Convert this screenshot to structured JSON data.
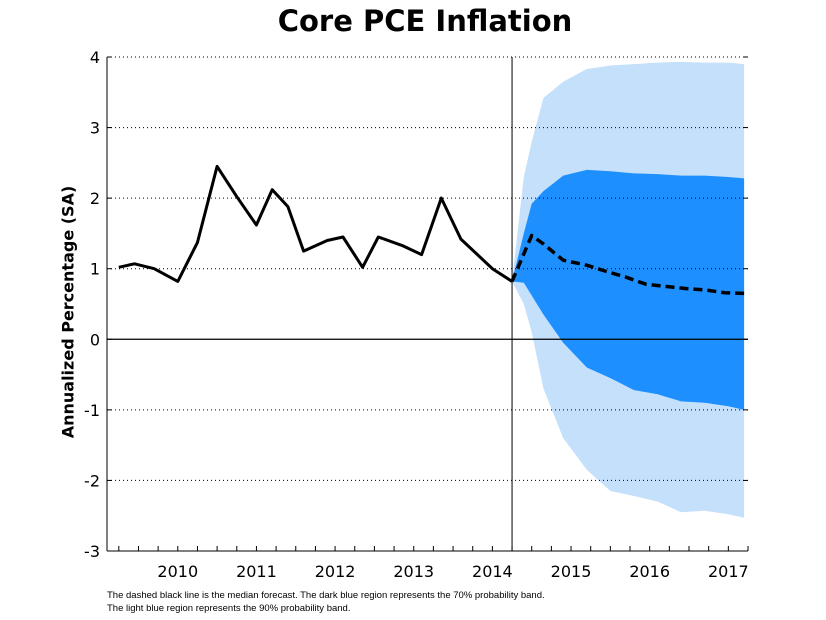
{
  "chart_data": {
    "type": "line",
    "title": "Core PCE Inflation",
    "ylabel": "Annualized Percentage (SA)",
    "xlabel": "",
    "ylim": [
      -3,
      4
    ],
    "xlim": [
      2009.6,
      2017.75
    ],
    "yticks": [
      -3,
      -2,
      -1,
      0,
      1,
      2,
      3,
      4
    ],
    "xtick_labels": [
      "2010",
      "2011",
      "2012",
      "2013",
      "2014",
      "2015",
      "2016",
      "2017"
    ],
    "grid": "horizontal dotted",
    "forecast_start": 2014.75,
    "history": {
      "x": [
        2009.75,
        2009.95,
        2010.2,
        2010.5,
        2010.75,
        2011.0,
        2011.25,
        2011.5,
        2011.7,
        2011.9,
        2012.1,
        2012.4,
        2012.6,
        2012.85,
        2013.05,
        2013.35,
        2013.6,
        2013.85,
        2014.1,
        2014.5,
        2014.75
      ],
      "y": [
        1.02,
        1.07,
        1.0,
        0.82,
        1.37,
        2.45,
        2.02,
        1.62,
        2.12,
        1.88,
        1.25,
        1.4,
        1.45,
        1.02,
        1.45,
        1.33,
        1.2,
        2.0,
        1.42,
        1.0,
        0.82
      ]
    },
    "median_forecast": {
      "x": [
        2014.75,
        2015.0,
        2015.15,
        2015.4,
        2015.7,
        2015.95,
        2016.2,
        2016.45,
        2016.7,
        2016.95,
        2017.2,
        2017.45,
        2017.7
      ],
      "y": [
        0.82,
        1.47,
        1.35,
        1.12,
        1.05,
        0.96,
        0.88,
        0.78,
        0.75,
        0.72,
        0.7,
        0.66,
        0.65
      ]
    },
    "bands": {
      "x": [
        2014.75,
        2014.9,
        2015.0,
        2015.15,
        2015.4,
        2015.7,
        2016.0,
        2016.3,
        2016.6,
        2016.9,
        2017.2,
        2017.5,
        2017.7
      ],
      "band70_upper": [
        0.82,
        1.5,
        1.92,
        2.1,
        2.32,
        2.4,
        2.38,
        2.35,
        2.34,
        2.32,
        2.32,
        2.3,
        2.28
      ],
      "band70_lower": [
        0.82,
        0.8,
        0.62,
        0.35,
        -0.05,
        -0.4,
        -0.55,
        -0.72,
        -0.78,
        -0.88,
        -0.9,
        -0.95,
        -1.0
      ],
      "band90_upper": [
        0.82,
        2.3,
        2.8,
        3.42,
        3.65,
        3.83,
        3.88,
        3.9,
        3.92,
        3.93,
        3.92,
        3.92,
        3.9
      ],
      "band90_lower": [
        0.82,
        0.5,
        0.1,
        -0.7,
        -1.4,
        -1.85,
        -2.15,
        -2.22,
        -2.3,
        -2.45,
        -2.43,
        -2.48,
        -2.53
      ]
    },
    "colors": {
      "band90": "#c4e0fb",
      "band70": "#1e8fff",
      "history_line": "#000000",
      "median_line": "#000000"
    }
  },
  "notes": {
    "line1": "The dashed black line is the median forecast. The dark blue region represents the 70% probability band.",
    "line2": "The light blue region represents the 90% probability band."
  }
}
